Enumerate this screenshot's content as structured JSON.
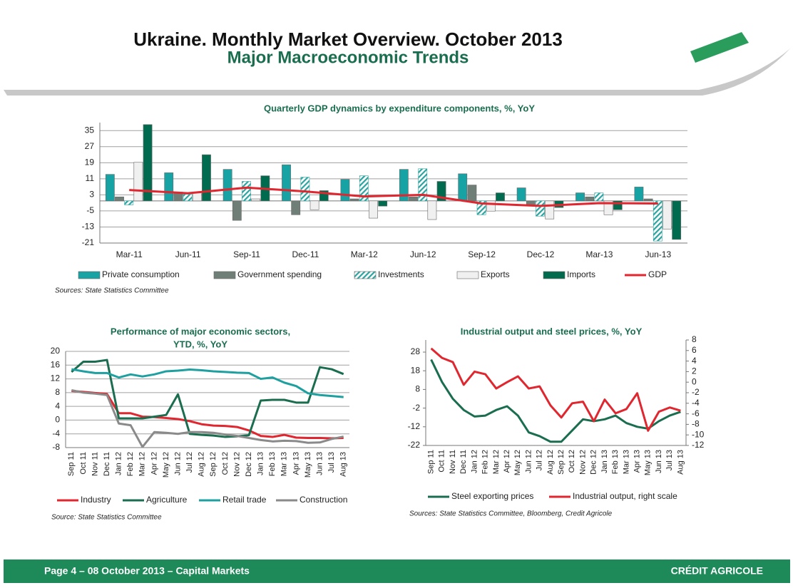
{
  "header": {
    "title": "Ukraine. Monthly Market Overview. October 2013",
    "subtitle": "Major Macroeconomic Trends"
  },
  "footer": {
    "page": "Page 4 – 08 October 2013 – Capital Markets",
    "brand": "CRÉDIT AGRICOLE"
  },
  "chart_data": [
    {
      "type": "bar",
      "title": "Quarterly GDP dynamics by expenditure components, %, YoY",
      "categories": [
        "Mar-11",
        "Jun-11",
        "Sep-11",
        "Dec-11",
        "Mar-12",
        "Jun-12",
        "Sep-12",
        "Dec-12",
        "Mar-13",
        "Jun-13"
      ],
      "series": [
        {
          "name": "Private consumption",
          "color": "#17a2a4",
          "values": [
            13.2,
            14,
            15.7,
            18,
            10.7,
            15.7,
            13.5,
            6.5,
            4,
            6.9
          ]
        },
        {
          "name": "Government spending",
          "color": "#6f7f78",
          "values": [
            2,
            4.4,
            -9.7,
            -6.9,
            1,
            2,
            7.9,
            -2,
            2,
            1
          ]
        },
        {
          "name": "Investments",
          "color": "#2ba39f",
          "hatch": true,
          "values": [
            -2,
            3.3,
            9.7,
            11.8,
            12.5,
            16,
            -6.9,
            -7.6,
            4,
            -20
          ]
        },
        {
          "name": "Exports",
          "color": "#f0f0f0",
          "values": [
            19.2,
            4,
            1,
            -4.4,
            -8.6,
            -9.3,
            -5.1,
            -9,
            -6.9,
            -14
          ]
        },
        {
          "name": "Imports",
          "color": "#006b4e",
          "values": [
            38,
            23,
            12.5,
            5.1,
            -2.6,
            9.7,
            4,
            -3.3,
            -4.4,
            -19.2
          ]
        },
        {
          "name": "GDP",
          "color": "#e0262f",
          "type": "line",
          "values": [
            5.4,
            3.8,
            6.6,
            4.7,
            2.2,
            3,
            -1.3,
            -2.5,
            -1.1,
            -1.3
          ]
        }
      ],
      "ylim": [
        -21,
        39
      ],
      "yticks": [
        -21,
        -13,
        -5,
        3,
        11,
        19,
        27,
        35
      ],
      "grid": true,
      "source": "Sources: State Statistics Committee"
    },
    {
      "type": "line",
      "title": [
        "Performance of major economic sectors,",
        "YTD,  %, YoY"
      ],
      "categories": [
        "Sep 11",
        "Oct 11",
        "Nov 11",
        "Dec 11",
        "Jan 12",
        "Feb 12",
        "Mar 12",
        "Apr 12",
        "May 12",
        "Jun 12",
        "Jul 12",
        "Aug 12",
        "Sep 12",
        "Oct 12",
        "Nov 12",
        "Dec 12",
        "Jan 13",
        "Feb 13",
        "Mar 13",
        "Apr 13",
        "May 13",
        "Jun 13",
        "Jul 13",
        "Aug 13"
      ],
      "series": [
        {
          "name": "Industry",
          "color": "#e0262f",
          "values": [
            8.5,
            8.2,
            7.9,
            7.6,
            2,
            2,
            1,
            0.9,
            0.6,
            0.3,
            -0.3,
            -1.2,
            -1.6,
            -1.7,
            -2,
            -3,
            -4.6,
            -4.9,
            -4.3,
            -5.1,
            -5.2,
            -5.2,
            -5.3,
            -5.2
          ]
        },
        {
          "name": "Agriculture",
          "color": "#1a6e4f",
          "values": [
            14,
            17,
            17,
            17.5,
            0.5,
            0.5,
            0.5,
            1,
            1.5,
            7.5,
            -4,
            -4.3,
            -4.5,
            -4.9,
            -4.7,
            -4.4,
            5.7,
            5.9,
            5.9,
            5.1,
            5.1,
            15.4,
            14.8,
            13.4
          ]
        },
        {
          "name": "Retail trade",
          "color": "#1fa0a0",
          "values": [
            14.8,
            14.2,
            13.7,
            13.7,
            12.4,
            13.3,
            12.7,
            13.3,
            14.2,
            14.4,
            14.7,
            14.5,
            14.2,
            14,
            13.8,
            13.7,
            12,
            12.4,
            10.9,
            9.9,
            7.8,
            7.3,
            7,
            6.7
          ]
        },
        {
          "name": "Construction",
          "color": "#8a8a8a",
          "values": [
            8.7,
            8,
            7.7,
            7.3,
            -1,
            -1.5,
            -7.8,
            -3.5,
            -3.7,
            -4,
            -3.5,
            -3.5,
            -3.7,
            -4.2,
            -4.6,
            -5.2,
            -5.8,
            -6.2,
            -6,
            -6.1,
            -6.6,
            -6.5,
            -5.5,
            -4.8
          ]
        }
      ],
      "ylim": [
        -8,
        20
      ],
      "yticks": [
        -8,
        -4,
        0,
        4,
        8,
        12,
        16,
        20
      ],
      "grid": true,
      "source": "Source: State Statistics Committee"
    },
    {
      "type": "line",
      "title": "Industrial output and steel prices, %, YoY",
      "categories": [
        "Sep 11",
        "Oct 11",
        "Nov 11",
        "Dec 11",
        "Jan 12",
        "Feb 12",
        "Mar 12",
        "Apr 12",
        "May 12",
        "Jun 12",
        "Jul 12",
        "Aug 12",
        "Sep 12",
        "Oct 12",
        "Nov 12",
        "Dec 12",
        "Jan 13",
        "Feb 13",
        "Mar 13",
        "Apr 13",
        "May 13",
        "Jun 13",
        "Jul 13",
        "Aug 13"
      ],
      "series": [
        {
          "name": "Steel exporting prices",
          "color": "#1a6e4f",
          "values": [
            24,
            12,
            3,
            -3,
            -6.5,
            -6,
            -3,
            -1,
            -6,
            -15,
            -17,
            -20,
            -20,
            -14,
            -8,
            -9,
            -8,
            -6,
            -10,
            -12,
            -13,
            -9,
            -6,
            -4
          ]
        },
        {
          "name": "Industrial output, right scale",
          "color": "#e0262f",
          "axis": "y2",
          "values": [
            6.4,
            4.6,
            3.8,
            -0.5,
            2,
            1.5,
            -1.2,
            0,
            1.1,
            -1.2,
            -0.8,
            -4.4,
            -6.7,
            -4,
            -3.7,
            -7.4,
            -3.3,
            -5.9,
            -5.1,
            -2.1,
            -9.2,
            -5.6,
            -4.8,
            -5.4
          ]
        }
      ],
      "ylim": [
        -22,
        34.5
      ],
      "yticks": [
        -22,
        -12,
        -2,
        8,
        18,
        28
      ],
      "y2lim": [
        -12,
        8
      ],
      "y2ticks": [
        -12,
        -10,
        -8,
        -6,
        -4,
        -2,
        0,
        2,
        4,
        6,
        8
      ],
      "grid": false,
      "source": "Sources: State Statistics Committee, Bloomberg, Credit Agricole"
    }
  ]
}
